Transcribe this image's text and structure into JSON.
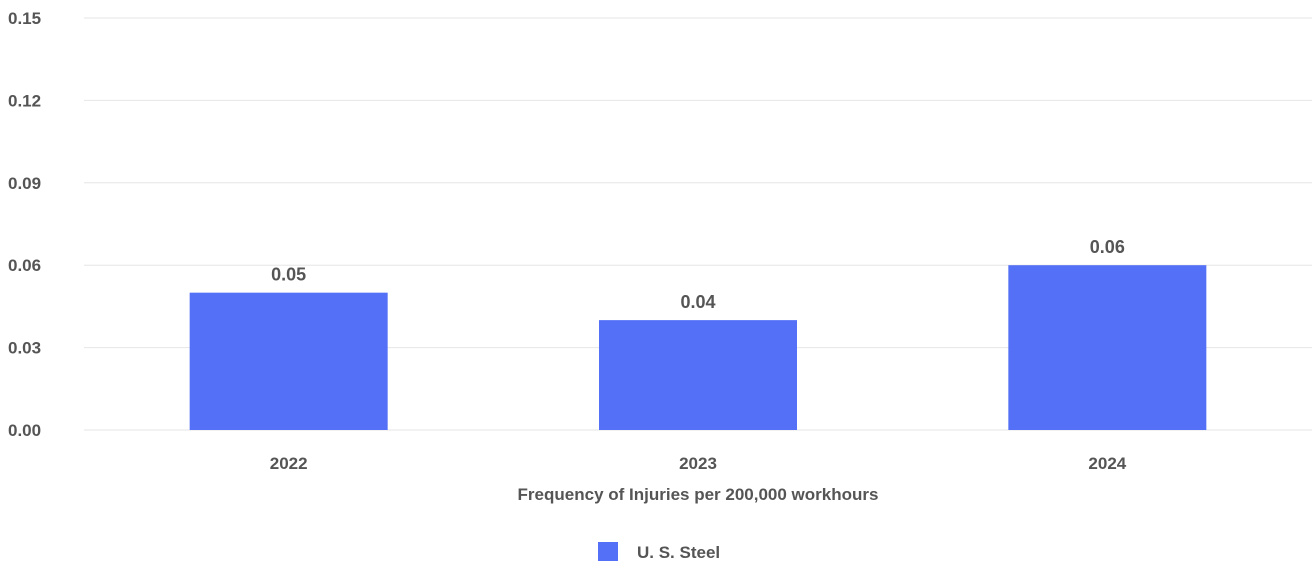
{
  "chart_data": {
    "type": "bar",
    "categories": [
      "2022",
      "2023",
      "2024"
    ],
    "series": [
      {
        "name": "U. S. Steel",
        "values": [
          0.05,
          0.04,
          0.06
        ],
        "color": "#5470f6"
      }
    ],
    "data_labels": [
      "0.05",
      "0.04",
      "0.06"
    ],
    "y_ticks": [
      "0.00",
      "0.03",
      "0.06",
      "0.09",
      "0.12",
      "0.15"
    ],
    "y_tick_values": [
      0,
      0.03,
      0.06,
      0.09,
      0.12,
      0.15
    ],
    "ylim": [
      0,
      0.15
    ],
    "xlabel": "Frequency of Injuries per 200,000 workhours",
    "ylabel": "",
    "title": "",
    "grid": true,
    "legend_position": "bottom-center"
  },
  "colors": {
    "bar": "#5470f6",
    "grid": "#e6e6e6",
    "text": "#555555"
  }
}
